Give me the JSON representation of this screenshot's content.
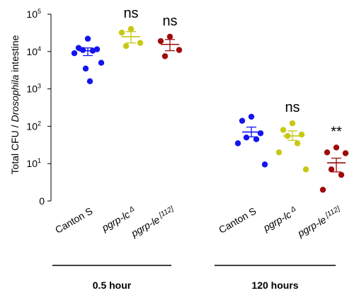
{
  "chart_data": {
    "type": "scatter",
    "y_scale": "log",
    "ylim": [
      1,
      100000
    ],
    "ylabel": {
      "prefix": "Total CFU / ",
      "italic": "Drosophila",
      "suffix": " intestine"
    },
    "y_ticks": [
      {
        "value": 1,
        "label": "0"
      },
      {
        "value": 10,
        "base": "10",
        "exp": "1"
      },
      {
        "value": 100,
        "base": "10",
        "exp": "2"
      },
      {
        "value": 1000,
        "base": "10",
        "exp": "3"
      },
      {
        "value": 10000,
        "base": "10",
        "exp": "4"
      },
      {
        "value": 100000,
        "base": "10",
        "exp": "5"
      }
    ],
    "groups": [
      {
        "label": "0.5 hour"
      },
      {
        "label": "120 hours"
      }
    ],
    "series": [
      {
        "group": 0,
        "label": {
          "text": "Canton S",
          "italic": false,
          "sup": ""
        },
        "color": "#1414f0",
        "points": [
          22000,
          12500,
          11500,
          11000,
          10500,
          9000,
          5000,
          3500,
          1600
        ],
        "mean": 10500,
        "err_low": 7800,
        "err_high": 12500,
        "significance": ""
      },
      {
        "group": 0,
        "label": {
          "text": "pgrp-lc",
          "italic": true,
          "sup": "Δ"
        },
        "color": "#c8c814",
        "points": [
          40000,
          32000,
          17000,
          14000
        ],
        "mean": 25000,
        "err_low": 17000,
        "err_high": 34000,
        "significance": "ns"
      },
      {
        "group": 0,
        "label": {
          "text": "pgrp-le",
          "italic": true,
          "sup": "[112]"
        },
        "color": "#a00a0a",
        "points": [
          25000,
          19000,
          11000,
          7500
        ],
        "mean": 15500,
        "err_low": 10500,
        "err_high": 21000,
        "significance": "ns"
      },
      {
        "group": 1,
        "label": {
          "text": "Canton S",
          "italic": false,
          "sup": ""
        },
        "color": "#1414f0",
        "points": [
          180,
          140,
          65,
          50,
          45,
          35,
          9.5
        ],
        "mean": 70,
        "err_low": 52,
        "err_high": 95,
        "significance": ""
      },
      {
        "group": 1,
        "label": {
          "text": "pgrp-lc",
          "italic": true,
          "sup": "Δ"
        },
        "color": "#c8c814",
        "points": [
          120,
          80,
          60,
          55,
          35,
          20,
          7
        ],
        "mean": 55,
        "err_low": 42,
        "err_high": 75,
        "significance": "ns"
      },
      {
        "group": 1,
        "label": {
          "text": "pgrp-le",
          "italic": true,
          "sup": "[112]"
        },
        "color": "#a00a0a",
        "points": [
          27,
          20,
          19,
          7,
          5,
          2
        ],
        "mean": 10.5,
        "err_low": 6,
        "err_high": 14,
        "significance": "**"
      }
    ]
  }
}
